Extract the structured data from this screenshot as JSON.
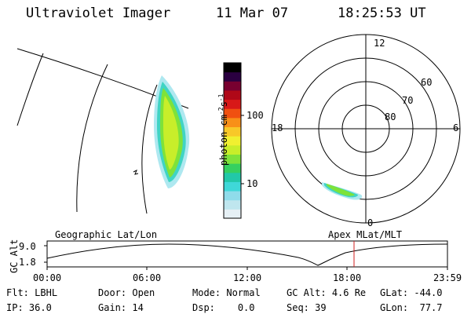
{
  "header": {
    "instrument": "Ultraviolet Imager",
    "date": "11 Mar 07",
    "time": "18:25:53 UT"
  },
  "colorbar": {
    "unit_label": "photon cm",
    "unit_sup1": "-2",
    "unit_mid": "s",
    "unit_sup2": "-1",
    "tick_100": "100",
    "tick_10": "10",
    "colors": [
      "#e6f0f5",
      "#bfe6ee",
      "#8fdcea",
      "#3fd8d8",
      "#22c8a8",
      "#35d060",
      "#7ee23a",
      "#c8ee2a",
      "#f0f030",
      "#f8c828",
      "#f89018",
      "#f05010",
      "#d81818",
      "#b00818",
      "#780030",
      "#2a0040",
      "#000000"
    ]
  },
  "polar_plot": {
    "mlt_labels": {
      "top": "12",
      "left": "18",
      "right": "6",
      "bottom": "0"
    },
    "lat_labels": [
      "60",
      "70",
      "80"
    ]
  },
  "geo_map": {
    "label": "Geographic Lat/Lon"
  },
  "timeline": {
    "y_axis_label": "GC Alt",
    "y_max": "9.0",
    "y_min": "1.8",
    "left_label": "Geographic Lat/Lon",
    "right_label": "Apex MLat/MLT",
    "x_ticks": [
      "00:00",
      "06:00",
      "12:00",
      "18:00",
      "23:59"
    ],
    "current_marker_color": "#d02020"
  },
  "info": {
    "flt_label": "Flt:",
    "flt_value": "LBHL",
    "ip_label": "IP:",
    "ip_value": "36.0",
    "door_label": "Door:",
    "door_value": "Open",
    "gain_label": "Gain:",
    "gain_value": "14",
    "mode_label": "Mode:",
    "mode_value": "Normal",
    "dsp_label": "Dsp:",
    "dsp_value": "0.0",
    "gcalt_label": "GC Alt:",
    "gcalt_value": "4.6 Re",
    "seq_label": "Seq:",
    "seq_value": "39",
    "glat_label": "GLat:",
    "glat_value": "-44.0",
    "glon_label": "GLon:",
    "glon_value": "77.7"
  }
}
